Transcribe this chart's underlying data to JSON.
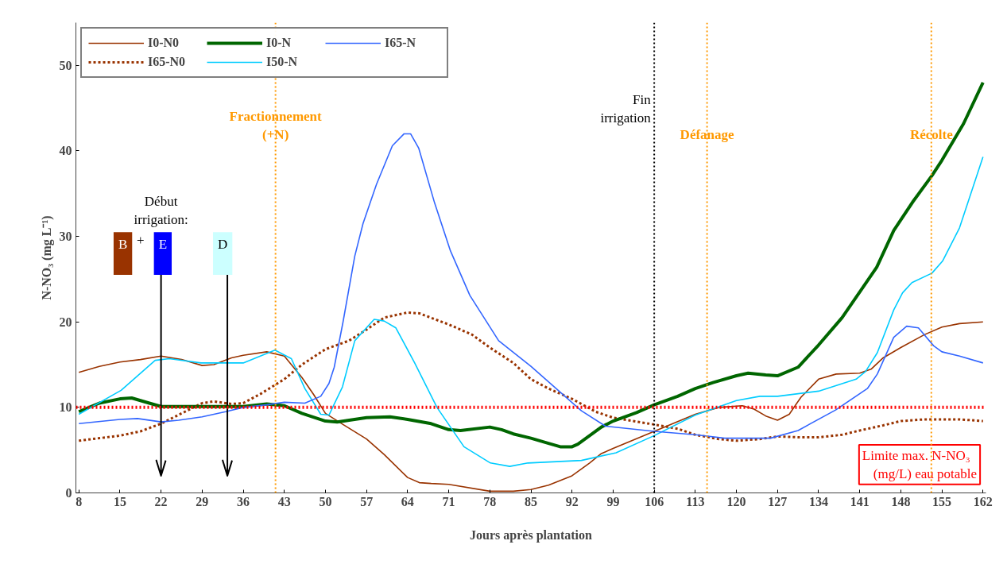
{
  "chart_data": {
    "type": "line",
    "xlabel": "Jours après plantation",
    "ylabel": "N-NO₃ (mg L⁻¹)",
    "xlim": [
      7.5,
      162.5
    ],
    "ylim": [
      0,
      55
    ],
    "xticks": [
      8,
      15,
      22,
      29,
      36,
      43,
      50,
      57,
      64,
      71,
      78,
      85,
      92,
      99,
      106,
      113,
      120,
      127,
      134,
      141,
      148,
      155,
      162
    ],
    "yticks": [
      0,
      10,
      20,
      30,
      40,
      50
    ],
    "grid": false,
    "legend": "top left",
    "series": [
      {
        "name": "I0-N0",
        "color": "#993300",
        "line_style": "solid",
        "x": [
          8,
          11.5,
          15,
          18.5,
          22,
          25.5,
          29,
          31,
          34,
          36,
          40,
          43,
          46,
          48,
          50,
          53,
          57,
          60,
          64,
          66,
          68,
          71,
          78,
          82,
          85,
          88,
          92,
          95,
          97,
          99,
          106,
          113,
          117,
          121,
          123,
          125,
          127,
          129,
          131,
          134,
          137,
          141,
          143,
          145,
          148,
          152,
          155,
          158,
          162
        ],
        "values": [
          14.1,
          14.8,
          15.3,
          15.6,
          16.0,
          15.6,
          14.9,
          15.0,
          15.8,
          16.1,
          16.5,
          16.0,
          13.5,
          11.5,
          9.3,
          8.0,
          6.3,
          4.5,
          1.8,
          1.2,
          1.1,
          1.0,
          0.2,
          0.2,
          0.4,
          0.9,
          2.0,
          3.5,
          4.6,
          5.2,
          7.2,
          9.2,
          10.0,
          10.2,
          9.8,
          9.0,
          8.5,
          9.2,
          11.2,
          13.3,
          13.9,
          14.0,
          14.5,
          15.8,
          17.0,
          18.5,
          19.4,
          19.8,
          20.0
        ]
      },
      {
        "name": "I65-N0",
        "color": "#993300",
        "line_style": "dashed",
        "x": [
          8,
          11.5,
          15,
          18.5,
          22,
          25.5,
          29,
          31,
          34,
          36,
          39,
          43,
          46,
          50,
          54,
          57,
          60,
          64,
          66,
          71,
          75,
          78,
          82,
          85,
          88,
          92,
          96,
          99,
          106,
          110,
          113,
          117,
          120,
          124,
          127,
          131,
          134,
          138,
          141,
          145,
          148,
          152,
          155,
          158,
          162
        ],
        "values": [
          6.1,
          6.4,
          6.7,
          7.2,
          8.1,
          9.3,
          10.5,
          10.7,
          10.4,
          10.5,
          11.6,
          13.3,
          15.0,
          16.8,
          17.8,
          19.1,
          20.5,
          21.1,
          21.0,
          19.7,
          18.5,
          17.0,
          15.2,
          13.3,
          12.2,
          11.0,
          9.5,
          8.8,
          8.0,
          7.5,
          6.8,
          6.3,
          6.1,
          6.3,
          6.6,
          6.5,
          6.5,
          6.8,
          7.3,
          7.9,
          8.4,
          8.6,
          8.6,
          8.6,
          8.4
        ]
      },
      {
        "name": "I0-N",
        "color": "#006600",
        "line_style": "solid",
        "x": [
          8,
          11.5,
          15,
          17,
          20,
          22,
          29,
          36,
          40,
          43,
          46,
          50,
          52,
          57,
          61,
          64,
          68,
          71,
          73,
          78,
          80,
          82,
          85,
          88,
          90,
          92,
          93,
          97,
          99,
          103,
          106,
          110,
          113,
          116,
          120,
          122,
          125,
          127,
          130.5,
          134,
          138,
          141,
          143.9,
          146.8,
          150,
          153.3,
          155,
          158.7,
          162
        ],
        "values": [
          9.5,
          10.5,
          11.0,
          11.1,
          10.5,
          10.1,
          10.1,
          10.1,
          10.4,
          10.2,
          9.3,
          8.4,
          8.3,
          8.8,
          8.9,
          8.6,
          8.1,
          7.4,
          7.3,
          7.7,
          7.4,
          6.9,
          6.4,
          5.8,
          5.4,
          5.4,
          5.7,
          7.7,
          8.4,
          9.4,
          10.3,
          11.3,
          12.2,
          12.9,
          13.7,
          14.0,
          13.8,
          13.7,
          14.7,
          17.3,
          20.5,
          23.5,
          26.4,
          30.7,
          34.0,
          37.1,
          38.9,
          43.2,
          48.0
        ]
      },
      {
        "name": "I50-N",
        "color": "#00ccff",
        "line_style": "solid",
        "x": [
          8,
          15.2,
          21,
          23.4,
          28.8,
          36,
          41.4,
          44.2,
          46.5,
          49.2,
          50.6,
          52.9,
          55,
          58.3,
          60,
          62,
          65.2,
          69,
          73.6,
          78.1,
          81.4,
          84.5,
          93.6,
          99.5,
          106,
          113,
          120,
          124,
          127,
          134,
          140.4,
          142,
          144,
          146.8,
          148.3,
          149.9,
          153.3,
          155.1,
          158,
          162
        ],
        "values": [
          9.2,
          12.0,
          15.5,
          15.7,
          15.2,
          15.2,
          16.7,
          15.7,
          12.2,
          9.2,
          9.1,
          12.4,
          17.8,
          20.3,
          20.1,
          19.3,
          15.2,
          10.0,
          5.4,
          3.5,
          3.1,
          3.5,
          3.8,
          4.7,
          6.7,
          9.1,
          10.8,
          11.3,
          11.3,
          11.9,
          13.3,
          14.2,
          16.4,
          21.4,
          23.4,
          24.6,
          25.7,
          27.1,
          31.0,
          39.3
        ]
      },
      {
        "name": "I65-N",
        "color": "#3366ff",
        "line_style": "solid",
        "x": [
          8,
          15,
          18,
          22,
          25,
          29,
          33,
          36,
          40,
          43,
          46.5,
          49.2,
          50.6,
          51.5,
          53,
          55,
          56.4,
          58.7,
          61.4,
          63.4,
          64.5,
          65.9,
          68.6,
          71.3,
          74.6,
          79.5,
          85,
          93.6,
          97.7,
          106,
          113,
          118,
          125.8,
          130.5,
          136.9,
          142.3,
          144,
          146.8,
          149,
          151,
          153.6,
          155,
          158,
          162
        ],
        "values": [
          8.1,
          8.6,
          8.7,
          8.3,
          8.5,
          8.9,
          9.5,
          10.0,
          10.3,
          10.6,
          10.5,
          11.3,
          12.8,
          14.7,
          20.0,
          27.7,
          31.5,
          36.1,
          40.6,
          42.0,
          42.0,
          40.3,
          33.9,
          28.3,
          23.1,
          17.8,
          14.8,
          9.6,
          7.8,
          7.2,
          6.8,
          6.4,
          6.4,
          7.3,
          9.7,
          12.2,
          13.9,
          18.2,
          19.5,
          19.3,
          17.2,
          16.5,
          16.0,
          15.2
        ]
      }
    ],
    "ref_lines": [
      {
        "axis": "y",
        "value": 10,
        "label": "Limite  max.  N-NO₃\n(mg/L) eau potable",
        "color": "#ff0000",
        "line_style": "dotted"
      },
      {
        "axis": "x",
        "value": 41.5,
        "label": "Fractionnement\n(+N)",
        "color": "#ff9900",
        "line_style": "dotted"
      },
      {
        "axis": "x",
        "value": 106,
        "label": "Fin\nirrigation",
        "color": "#000000",
        "line_style": "dotted"
      },
      {
        "axis": "x",
        "value": 115,
        "label": "Défanage",
        "color": "#ff9900",
        "line_style": "dotted"
      },
      {
        "axis": "x",
        "value": 153.2,
        "label": "Récolte",
        "color": "#ff9900",
        "line_style": "dotted"
      }
    ],
    "annotations": [
      "Début\nirrigation:",
      "B",
      "+",
      "E",
      "D"
    ]
  }
}
